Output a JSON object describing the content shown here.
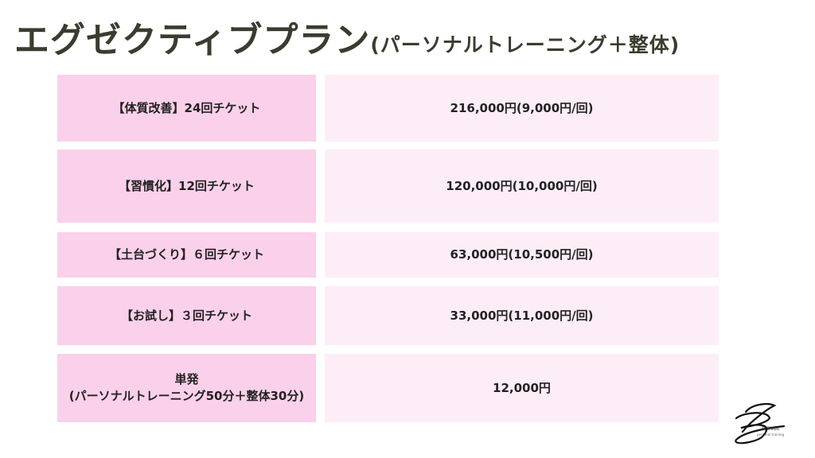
{
  "title": {
    "main": "エグゼクティブプラン",
    "sub": "(パーソナルトレーニング＋整体)"
  },
  "plans": [
    {
      "name": "【体質改善】24回チケット",
      "price": "216,000円(9,000円/回)"
    },
    {
      "name": "【習慣化】12回チケット",
      "price": "120,000円(10,000円/回)"
    },
    {
      "name": "【土台づくり】６回チケット",
      "price": "63,000円(10,500円/回)"
    },
    {
      "name": "【お試し】３回チケット",
      "price": "33,000円(11,000円/回)"
    },
    {
      "name": "単発",
      "note": "(パーソナルトレーニング50分＋整体30分)",
      "price": "12,000円"
    }
  ],
  "logo": {
    "name": "B/Sleek",
    "tagline": "personal training"
  },
  "colors": {
    "label_bg": "#fbd0ea",
    "price_bg": "#fdedf7",
    "title": "#3b3b2f"
  }
}
